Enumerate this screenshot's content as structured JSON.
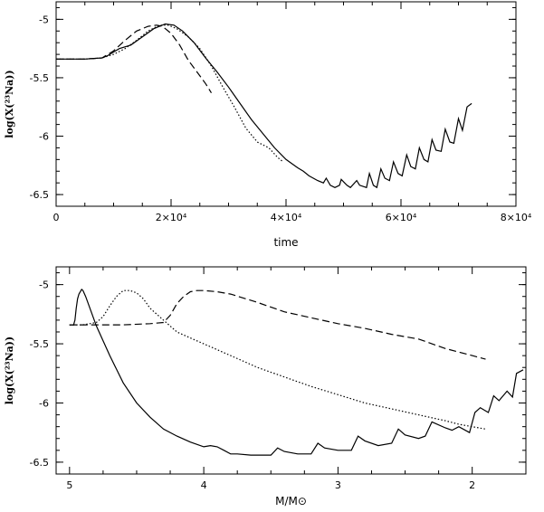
{
  "chart_data": [
    {
      "type": "line",
      "xlabel": "time",
      "ylabel": "log(X(²³Na))",
      "xlim": [
        0,
        80000
      ],
      "ylim": [
        -6.6,
        -4.85
      ],
      "x_ticks": [
        {
          "value": 0,
          "label": "0"
        },
        {
          "value": 20000,
          "label": "2×10⁴"
        },
        {
          "value": 40000,
          "label": "4×10⁴"
        },
        {
          "value": 60000,
          "label": "6×10⁴"
        },
        {
          "value": 80000,
          "label": "8×10⁴"
        }
      ],
      "y_ticks": [
        {
          "value": -5,
          "label": "-5"
        },
        {
          "value": -5.5,
          "label": "-5.5"
        },
        {
          "value": -6,
          "label": "-6"
        },
        {
          "value": -6.5,
          "label": "-6.5"
        }
      ],
      "series": [
        {
          "style": "solid",
          "x": [
            0,
            5000,
            8000,
            9000,
            10000,
            11000,
            13000,
            15000,
            17000,
            19000,
            20500,
            22000,
            24000,
            26000,
            28000,
            30000,
            32000,
            34000,
            36000,
            38000,
            40000,
            42000,
            43000,
            44000,
            45500,
            46500,
            47000,
            47700,
            48500,
            49300,
            49600,
            50600,
            51200,
            52300,
            52800,
            54000,
            54500,
            55200,
            55800,
            56500,
            57200,
            58000,
            58700,
            59500,
            60200,
            61000,
            61700,
            62500,
            63200,
            64000,
            64700,
            65400,
            66100,
            67000,
            67700,
            68500,
            69200,
            70000,
            70700,
            71500,
            72300
          ],
          "y": [
            -5.34,
            -5.34,
            -5.33,
            -5.31,
            -5.28,
            -5.25,
            -5.22,
            -5.15,
            -5.08,
            -5.04,
            -5.05,
            -5.1,
            -5.2,
            -5.33,
            -5.45,
            -5.58,
            -5.72,
            -5.86,
            -5.98,
            -6.1,
            -6.2,
            -6.27,
            -6.3,
            -6.34,
            -6.38,
            -6.4,
            -6.36,
            -6.42,
            -6.44,
            -6.42,
            -6.37,
            -6.42,
            -6.44,
            -6.38,
            -6.42,
            -6.44,
            -6.32,
            -6.42,
            -6.44,
            -6.28,
            -6.36,
            -6.38,
            -6.22,
            -6.32,
            -6.34,
            -6.16,
            -6.26,
            -6.28,
            -6.1,
            -6.2,
            -6.22,
            -6.03,
            -6.12,
            -6.13,
            -5.94,
            -6.05,
            -6.06,
            -5.85,
            -5.95,
            -5.75,
            -5.72
          ]
        },
        {
          "style": "dotted",
          "x": [
            0,
            5000,
            8000,
            10000,
            12000,
            14000,
            16000,
            18000,
            19500,
            21000,
            23000,
            25000,
            27000,
            29000,
            31000,
            33000,
            35000,
            37000,
            38500,
            39500
          ],
          "y": [
            -5.34,
            -5.34,
            -5.33,
            -5.3,
            -5.25,
            -5.18,
            -5.1,
            -5.05,
            -5.05,
            -5.08,
            -5.15,
            -5.25,
            -5.4,
            -5.58,
            -5.75,
            -5.93,
            -6.05,
            -6.1,
            -6.18,
            -6.22
          ]
        },
        {
          "style": "dashed",
          "x": [
            0,
            5000,
            8000,
            10000,
            12000,
            14000,
            16000,
            17500,
            18500,
            20000,
            21500,
            23000,
            24500,
            26000,
            27000
          ],
          "y": [
            -5.34,
            -5.34,
            -5.33,
            -5.27,
            -5.18,
            -5.1,
            -5.06,
            -5.05,
            -5.06,
            -5.12,
            -5.22,
            -5.35,
            -5.45,
            -5.55,
            -5.63
          ]
        }
      ]
    },
    {
      "type": "line",
      "xlabel": "M/M⊙",
      "ylabel": "log(X(²³Na))",
      "xlim": [
        5.1,
        1.6
      ],
      "ylim": [
        -6.6,
        -4.85
      ],
      "x_ticks": [
        {
          "value": 5,
          "label": "5"
        },
        {
          "value": 4,
          "label": "4"
        },
        {
          "value": 3,
          "label": "3"
        },
        {
          "value": 2,
          "label": "2"
        }
      ],
      "y_ticks": [
        {
          "value": -5,
          "label": "-5"
        },
        {
          "value": -5.5,
          "label": "-5.5"
        },
        {
          "value": -6,
          "label": "-6"
        },
        {
          "value": -6.5,
          "label": "-6.5"
        }
      ],
      "series": [
        {
          "style": "solid",
          "x": [
            5,
            4.98,
            4.97,
            4.96,
            4.95,
            4.94,
            4.93,
            4.91,
            4.9,
            4.88,
            4.8,
            4.7,
            4.6,
            4.5,
            4.4,
            4.3,
            4.2,
            4.1,
            4.0,
            3.95,
            3.9,
            3.85,
            3.8,
            3.75,
            3.65,
            3.5,
            3.45,
            3.4,
            3.3,
            3.2,
            3.15,
            3.1,
            3.0,
            2.9,
            2.85,
            2.8,
            2.7,
            2.6,
            2.55,
            2.5,
            2.4,
            2.35,
            2.3,
            2.2,
            2.15,
            2.1,
            2.02,
            1.98,
            1.94,
            1.88,
            1.84,
            1.8,
            1.74,
            1.7,
            1.67,
            1.62
          ],
          "y": [
            -5.34,
            -5.34,
            -5.34,
            -5.3,
            -5.2,
            -5.12,
            -5.08,
            -5.04,
            -5.05,
            -5.1,
            -5.35,
            -5.6,
            -5.83,
            -6.0,
            -6.12,
            -6.22,
            -6.28,
            -6.33,
            -6.37,
            -6.36,
            -6.37,
            -6.4,
            -6.43,
            -6.43,
            -6.44,
            -6.44,
            -6.38,
            -6.41,
            -6.43,
            -6.43,
            -6.34,
            -6.38,
            -6.4,
            -6.4,
            -6.28,
            -6.32,
            -6.36,
            -6.34,
            -6.22,
            -6.27,
            -6.3,
            -6.28,
            -6.16,
            -6.21,
            -6.23,
            -6.2,
            -6.25,
            -6.08,
            -6.04,
            -6.08,
            -5.94,
            -5.98,
            -5.9,
            -5.95,
            -5.75,
            -5.72
          ]
        },
        {
          "style": "dotted",
          "x": [
            5,
            4.97,
            4.95,
            4.9,
            4.85,
            4.8,
            4.75,
            4.7,
            4.65,
            4.6,
            4.55,
            4.5,
            4.45,
            4.4,
            4.3,
            4.2,
            4.0,
            3.8,
            3.6,
            3.4,
            3.2,
            3.0,
            2.8,
            2.6,
            2.4,
            2.2,
            2.1,
            2.0,
            1.9
          ],
          "y": [
            -5.34,
            -5.34,
            -5.34,
            -5.34,
            -5.33,
            -5.32,
            -5.27,
            -5.18,
            -5.1,
            -5.05,
            -5.05,
            -5.07,
            -5.12,
            -5.2,
            -5.3,
            -5.4,
            -5.5,
            -5.6,
            -5.7,
            -5.78,
            -5.86,
            -5.93,
            -6.0,
            -6.05,
            -6.1,
            -6.15,
            -6.18,
            -6.2,
            -6.22
          ]
        },
        {
          "style": "dashed",
          "x": [
            5,
            4.98,
            4.96,
            4.9,
            4.8,
            4.6,
            4.4,
            4.3,
            4.25,
            4.2,
            4.15,
            4.1,
            4.05,
            4.0,
            3.9,
            3.8,
            3.6,
            3.4,
            3.2,
            3.0,
            2.8,
            2.6,
            2.4,
            2.2,
            2.0,
            1.9
          ],
          "y": [
            -5.34,
            -5.34,
            -5.34,
            -5.34,
            -5.34,
            -5.34,
            -5.33,
            -5.32,
            -5.26,
            -5.16,
            -5.1,
            -5.06,
            -5.05,
            -5.05,
            -5.06,
            -5.08,
            -5.15,
            -5.23,
            -5.28,
            -5.33,
            -5.37,
            -5.42,
            -5.46,
            -5.54,
            -5.6,
            -5.63
          ]
        }
      ]
    }
  ]
}
